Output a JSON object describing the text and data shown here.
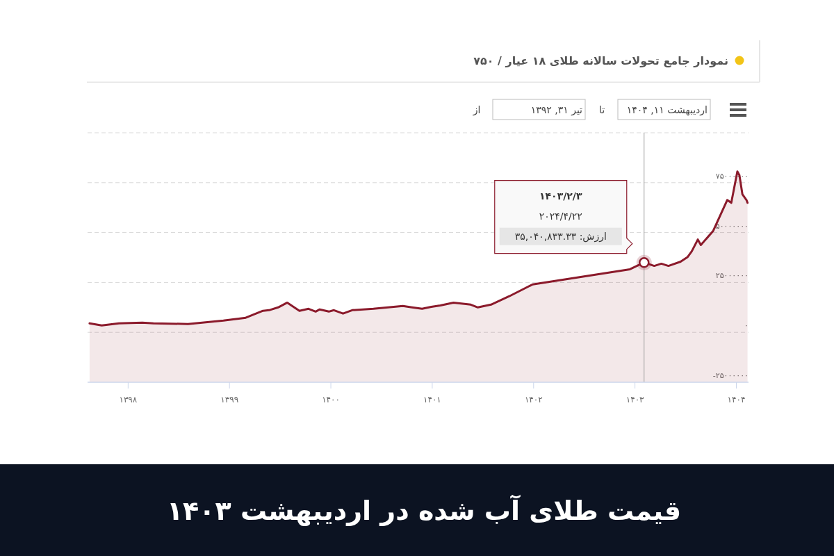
{
  "chart_data": {
    "type": "area",
    "title": "نمودار جامع تحولات سالانه طلای ۱۸ عیار / ۷۵۰",
    "subtitle": "قیمت طلای آب شده در اردیبهشت ۱۴۰۳",
    "annotations": [
      "اردیبهشت ۱۱, ۱۴۰۴",
      "تا",
      "تیر ۳۱, ۱۳۹۲",
      "از",
      "۱۴۰۳/۲/۳",
      "۲۰۲۴/۴/۲۲",
      "ارزش: ۳۵,۰۴۰,۸۳۳.۳۳"
    ],
    "x": [
      1397.62,
      1397.74,
      1397.91,
      1398.14,
      1398.25,
      1398.59,
      1398.94,
      1399.16,
      1399.33,
      1399.39,
      1399.48,
      1399.57,
      1399.69,
      1399.78,
      1399.85,
      1399.89,
      1399.98,
      1400.03,
      1400.12,
      1400.21,
      1400.42,
      1400.71,
      1400.8,
      1400.9,
      1400.99,
      1401.08,
      1401.21,
      1401.38,
      1401.45,
      1401.58,
      1401.76,
      1401.99,
      1402.95,
      1403.09,
      1403.19,
      1403.26,
      1403.33,
      1403.45,
      1403.52,
      1403.56,
      1403.62,
      1403.65,
      1403.77,
      1403.91,
      1403.95,
      1404.01,
      1404.03,
      1404.06,
      1404.1,
      1404.11
    ],
    "series": [
      {
        "color": "#8b1a2b",
        "values": [
          4500000,
          3500000,
          4500000,
          4900000,
          4500000,
          4200000,
          5900000,
          7300000,
          10800000,
          11100000,
          12500000,
          14900000,
          10800000,
          11800000,
          10400000,
          11500000,
          10400000,
          11100000,
          9400000,
          11100000,
          11800000,
          13200000,
          12500000,
          11800000,
          12800000,
          13500000,
          14900000,
          13900000,
          12500000,
          13900000,
          18100000,
          24000000,
          31600000,
          35000000,
          33300000,
          34400000,
          33300000,
          35400000,
          37800000,
          40600000,
          46500000,
          43800000,
          50700000,
          66300000,
          64900000,
          80600000,
          78800000,
          69100000,
          66300000,
          64900000
        ]
      }
    ],
    "xlim": [
      1397.6,
      1404.12
    ],
    "xticks": [
      {
        "value": 1398,
        "label": "۱۳۹۸"
      },
      {
        "value": 1399,
        "label": "۱۳۹۹"
      },
      {
        "value": 1400,
        "label": "۱۴۰۰"
      },
      {
        "value": 1401,
        "label": "۱۴۰۱"
      },
      {
        "value": 1402,
        "label": "۱۴۰۲"
      },
      {
        "value": 1403,
        "label": "۱۴۰۳"
      },
      {
        "value": 1404,
        "label": "۱۴۰۴"
      }
    ],
    "ylim": [
      -25000000,
      100000000
    ],
    "yticks": [
      {
        "value": -25000000,
        "label": "-۲۵۰۰۰۰۰۰"
      },
      {
        "value": 0,
        "label": "۰"
      },
      {
        "value": 25000000,
        "label": "۲۵۰۰۰۰۰۰"
      },
      {
        "value": 50000000,
        "label": "۵۰۰۰۰۰۰۰"
      },
      {
        "value": 75000000,
        "label": "۷۵۰۰۰۰۰۰"
      },
      {
        "value": 100000000,
        "label": null
      }
    ],
    "ref_lines": [
      {
        "axis": "x",
        "value": 1403.09,
        "color": "#a0a0a0"
      }
    ],
    "grid": "y"
  }
}
